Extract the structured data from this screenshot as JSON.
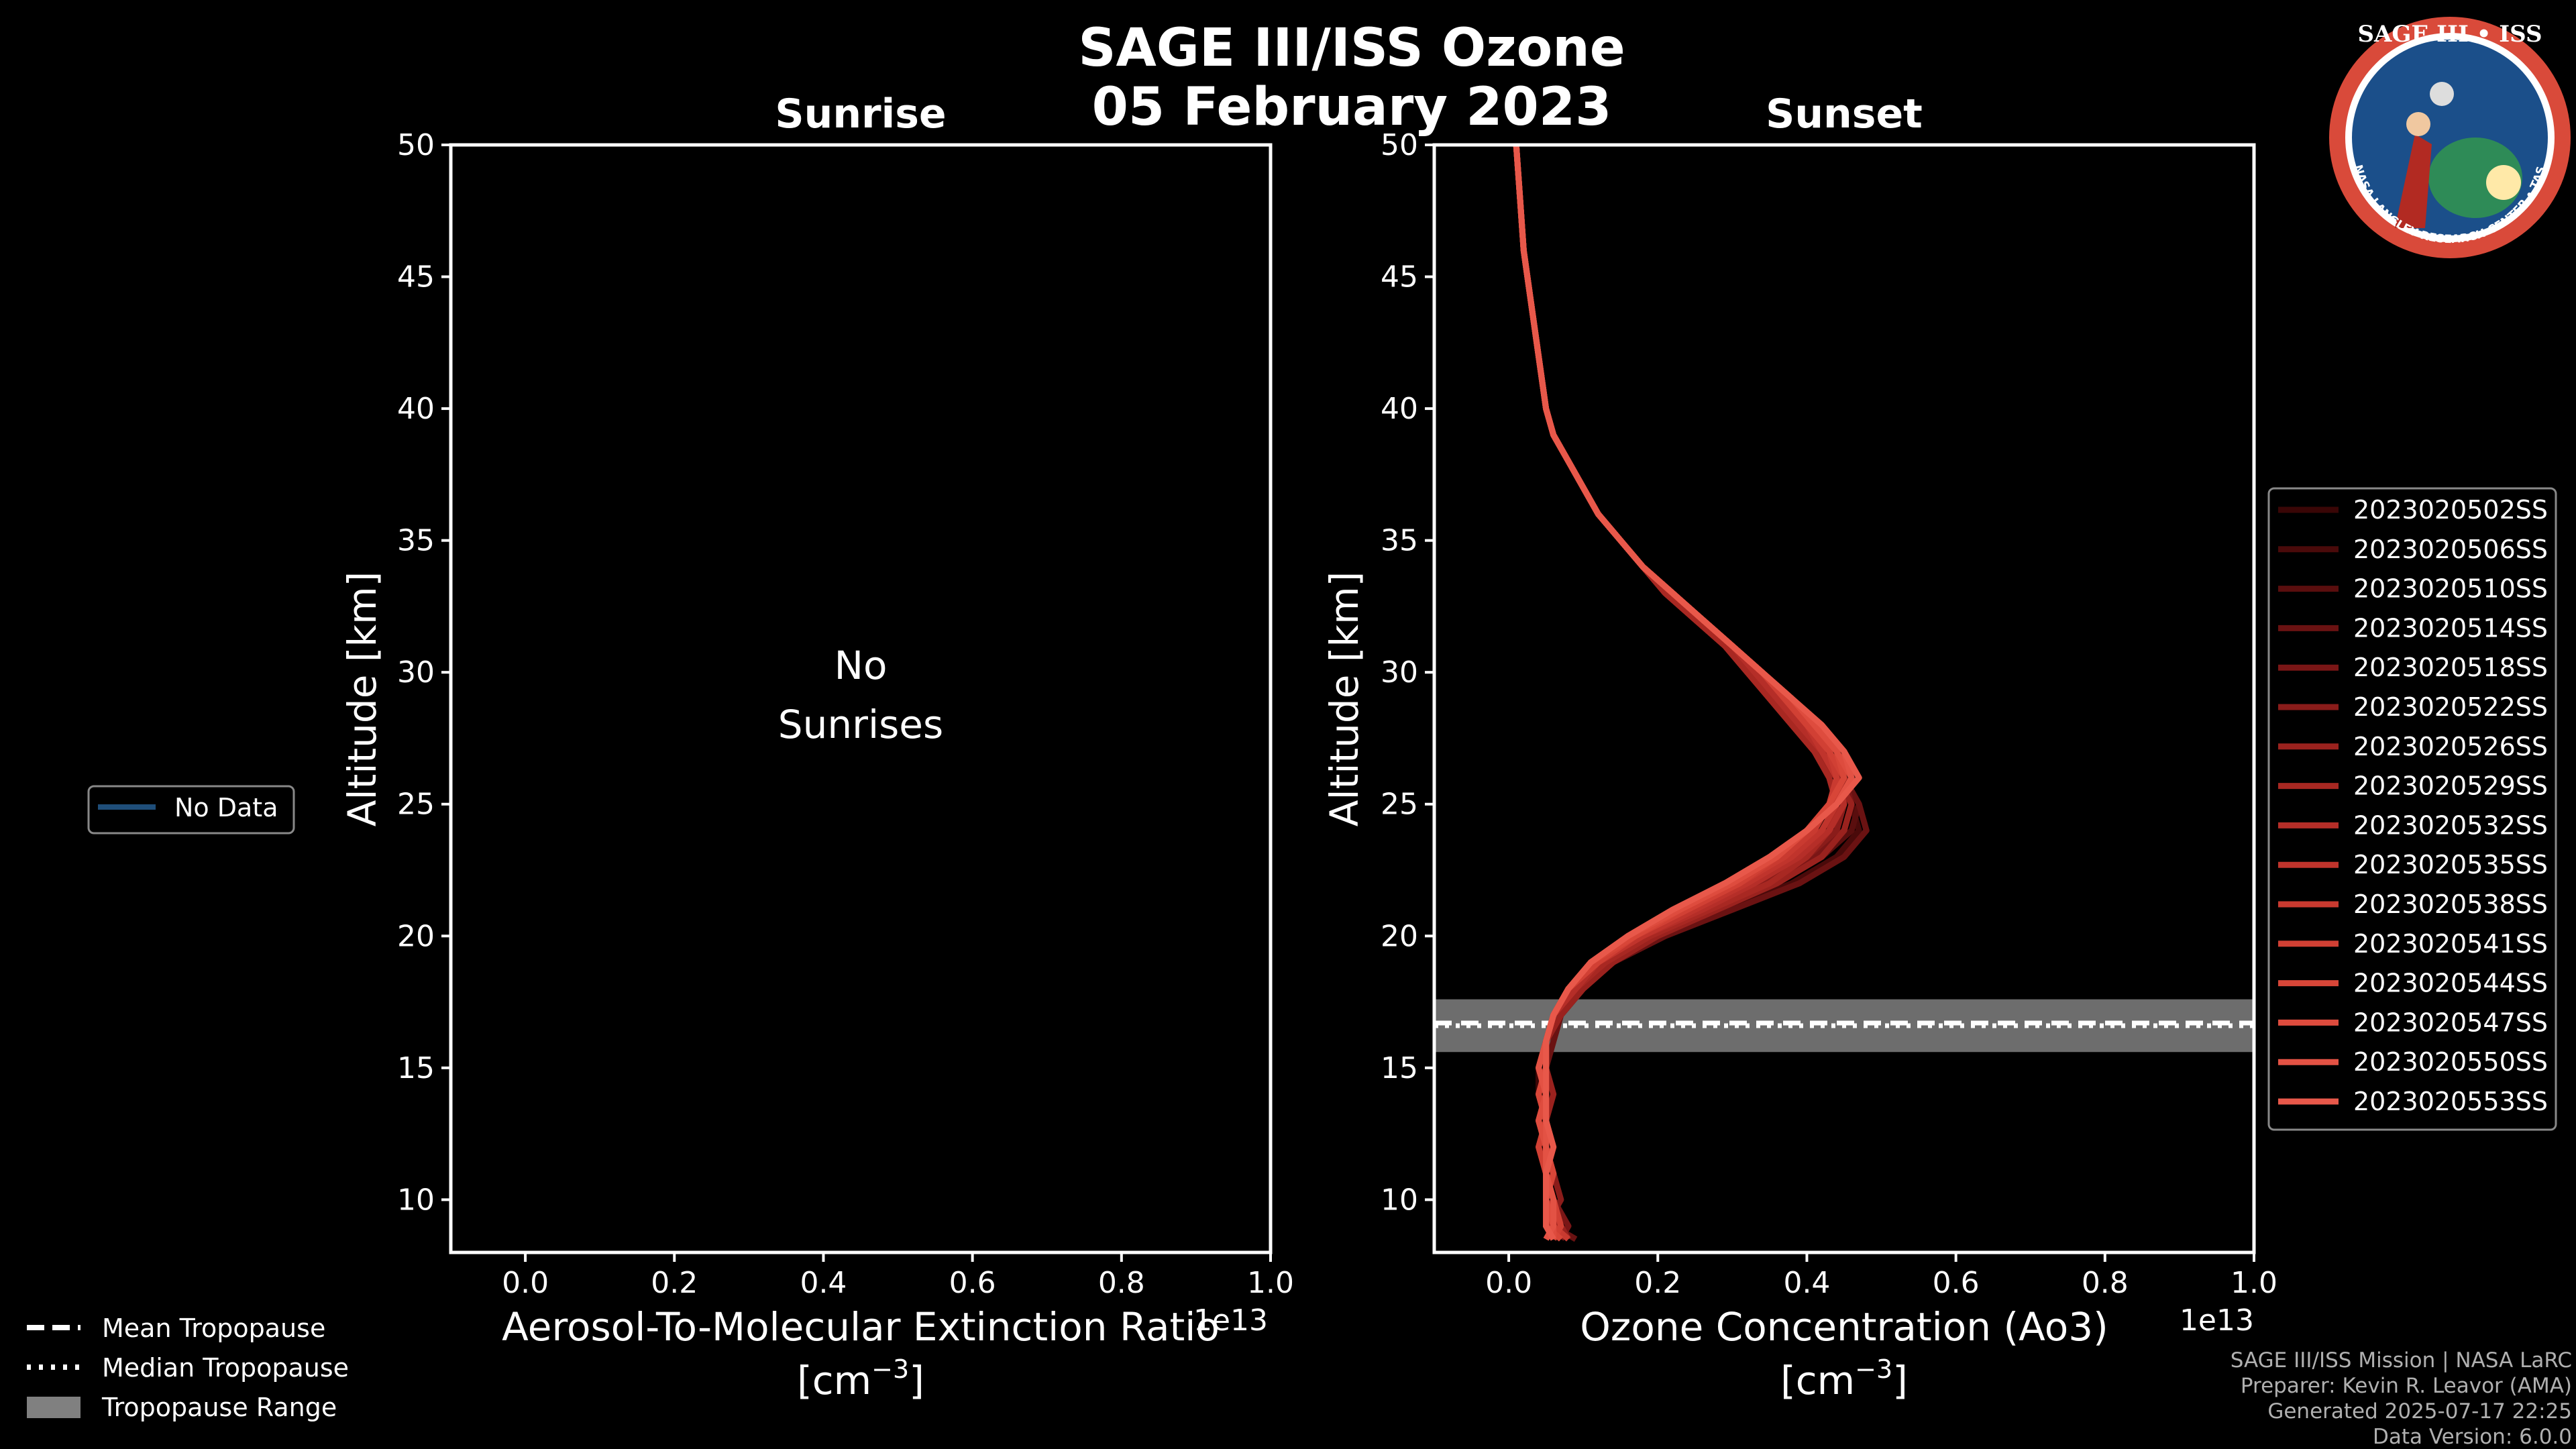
{
  "header": {
    "title_line1": "SAGE III/ISS Ozone",
    "title_line2": "05 February 2023"
  },
  "logo": {
    "text": "SAGE III • ISS",
    "ring_text": "BALL • NASA LANGLEY RESEARCH CENTER • TAS-I • ESA",
    "colors": {
      "ring": "#d94a3a",
      "inner": "#1b4f8a",
      "text": "#ffffff"
    }
  },
  "footer": {
    "mission": "SAGE III/ISS Mission | NASA LaRC",
    "preparer": "Preparer: Kevin R. Leavor (AMA)",
    "generated": "Generated 2025-07-17 22:25",
    "version": "Data Version: 6.0.0"
  },
  "left_legend": {
    "items": [
      {
        "label": "Mean Tropopause",
        "style": "dashed"
      },
      {
        "label": "Median Tropopause",
        "style": "dotted"
      },
      {
        "label": "Tropopause Range",
        "style": "patch"
      }
    ]
  },
  "chart_data": [
    {
      "type": "line",
      "title": "Sunrise",
      "xlabel": "Aerosol-To-Molecular Extinction Ratio",
      "xunit_base": "[cm",
      "xunit_exp": "−3",
      "xunit_close": "]",
      "x_offset_label": "1e13",
      "xlim": [
        -0.1,
        1.0
      ],
      "ylim": [
        8,
        50
      ],
      "xticks": [
        "0.0",
        "0.2",
        "0.4",
        "0.6",
        "0.8",
        "1.0"
      ],
      "xtick_values": [
        0.0,
        0.2,
        0.4,
        0.6,
        0.8,
        1.0
      ],
      "yticks": [
        10,
        15,
        20,
        25,
        30,
        35,
        40,
        45,
        50
      ],
      "ylabel": "Altitude [km]",
      "message_line1": "No",
      "message_line2": "Sunrises",
      "legend": [
        {
          "label": "No Data",
          "color": "#1f4e79"
        }
      ],
      "series": []
    },
    {
      "type": "line",
      "title": "Sunset",
      "xlabel": "Ozone Concentration (Ao3)",
      "xunit_base": "[cm",
      "xunit_exp": "−3",
      "xunit_close": "]",
      "x_offset_label": "1e13",
      "xlim": [
        -0.1,
        1.0
      ],
      "ylim": [
        8,
        50
      ],
      "xticks": [
        "0.0",
        "0.2",
        "0.4",
        "0.6",
        "0.8",
        "1.0"
      ],
      "xtick_values": [
        0.0,
        0.2,
        0.4,
        0.6,
        0.8,
        1.0
      ],
      "yticks": [
        10,
        15,
        20,
        25,
        30,
        35,
        40,
        45,
        50
      ],
      "ylabel": "Altitude [km]",
      "tropopause": {
        "mean": 16.7,
        "median": 16.6,
        "min": 15.6,
        "max": 17.6
      },
      "profile_altitudes": [
        8.5,
        9,
        10,
        11,
        12,
        13,
        14,
        15,
        16,
        17,
        18,
        19,
        20,
        21,
        22,
        23,
        24,
        25,
        26,
        27,
        28,
        29,
        30,
        31,
        32,
        33,
        34,
        35,
        36,
        37,
        38,
        39,
        40,
        42,
        44,
        46,
        48,
        50
      ],
      "series": [
        {
          "name": "2023020502SS",
          "color": "#3a0606",
          "values": [
            0.07,
            0.06,
            0.05,
            0.05,
            0.04,
            0.05,
            0.04,
            0.04,
            0.05,
            0.06,
            0.09,
            0.13,
            0.19,
            0.27,
            0.35,
            0.41,
            0.45,
            0.46,
            0.45,
            0.42,
            0.39,
            0.36,
            0.33,
            0.3,
            0.26,
            0.22,
            0.18,
            0.15,
            0.12,
            0.1,
            0.08,
            0.06,
            0.05,
            0.04,
            0.03,
            0.02,
            0.015,
            0.01
          ]
        },
        {
          "name": "2023020506SS",
          "color": "#4a0a0a",
          "values": [
            0.08,
            0.07,
            0.06,
            0.05,
            0.05,
            0.04,
            0.05,
            0.05,
            0.05,
            0.07,
            0.1,
            0.14,
            0.2,
            0.29,
            0.38,
            0.44,
            0.47,
            0.46,
            0.44,
            0.41,
            0.38,
            0.35,
            0.32,
            0.29,
            0.25,
            0.21,
            0.18,
            0.15,
            0.12,
            0.1,
            0.08,
            0.06,
            0.05,
            0.04,
            0.03,
            0.02,
            0.015,
            0.01
          ]
        },
        {
          "name": "2023020510SS",
          "color": "#5a0e0e",
          "values": [
            0.06,
            0.07,
            0.05,
            0.06,
            0.04,
            0.05,
            0.05,
            0.04,
            0.05,
            0.06,
            0.09,
            0.13,
            0.19,
            0.28,
            0.36,
            0.42,
            0.46,
            0.47,
            0.45,
            0.42,
            0.39,
            0.36,
            0.33,
            0.3,
            0.26,
            0.22,
            0.18,
            0.15,
            0.12,
            0.1,
            0.08,
            0.06,
            0.05,
            0.04,
            0.03,
            0.02,
            0.015,
            0.01
          ]
        },
        {
          "name": "2023020514SS",
          "color": "#6a1212",
          "values": [
            0.09,
            0.06,
            0.06,
            0.05,
            0.05,
            0.05,
            0.04,
            0.05,
            0.06,
            0.07,
            0.1,
            0.14,
            0.21,
            0.3,
            0.39,
            0.45,
            0.48,
            0.47,
            0.45,
            0.42,
            0.39,
            0.36,
            0.32,
            0.29,
            0.25,
            0.21,
            0.18,
            0.15,
            0.12,
            0.1,
            0.08,
            0.06,
            0.05,
            0.04,
            0.03,
            0.02,
            0.015,
            0.01
          ]
        },
        {
          "name": "2023020518SS",
          "color": "#7a1616",
          "values": [
            0.07,
            0.08,
            0.06,
            0.05,
            0.06,
            0.05,
            0.05,
            0.05,
            0.05,
            0.06,
            0.09,
            0.13,
            0.19,
            0.27,
            0.35,
            0.41,
            0.45,
            0.46,
            0.45,
            0.42,
            0.39,
            0.36,
            0.33,
            0.3,
            0.26,
            0.22,
            0.18,
            0.15,
            0.12,
            0.1,
            0.08,
            0.06,
            0.05,
            0.04,
            0.03,
            0.02,
            0.015,
            0.01
          ]
        },
        {
          "name": "2023020522SS",
          "color": "#8a1c1a",
          "values": [
            0.06,
            0.05,
            0.07,
            0.06,
            0.05,
            0.04,
            0.05,
            0.04,
            0.05,
            0.06,
            0.09,
            0.12,
            0.18,
            0.26,
            0.34,
            0.4,
            0.44,
            0.45,
            0.44,
            0.41,
            0.38,
            0.35,
            0.32,
            0.29,
            0.25,
            0.21,
            0.18,
            0.15,
            0.12,
            0.1,
            0.08,
            0.06,
            0.05,
            0.04,
            0.03,
            0.02,
            0.015,
            0.01
          ]
        },
        {
          "name": "2023020526SS",
          "color": "#9a221e",
          "values": [
            0.08,
            0.07,
            0.05,
            0.05,
            0.04,
            0.05,
            0.06,
            0.05,
            0.05,
            0.07,
            0.1,
            0.14,
            0.2,
            0.28,
            0.36,
            0.42,
            0.45,
            0.46,
            0.44,
            0.41,
            0.38,
            0.35,
            0.32,
            0.29,
            0.25,
            0.21,
            0.18,
            0.15,
            0.12,
            0.1,
            0.08,
            0.06,
            0.05,
            0.04,
            0.03,
            0.02,
            0.015,
            0.01
          ]
        },
        {
          "name": "2023020529SS",
          "color": "#a82822",
          "values": [
            0.05,
            0.06,
            0.06,
            0.05,
            0.05,
            0.05,
            0.05,
            0.04,
            0.05,
            0.06,
            0.09,
            0.13,
            0.19,
            0.27,
            0.35,
            0.4,
            0.43,
            0.44,
            0.43,
            0.41,
            0.38,
            0.35,
            0.32,
            0.29,
            0.25,
            0.21,
            0.18,
            0.15,
            0.12,
            0.1,
            0.08,
            0.06,
            0.05,
            0.04,
            0.03,
            0.02,
            0.015,
            0.01
          ]
        },
        {
          "name": "2023020532SS",
          "color": "#b52e28",
          "values": [
            0.07,
            0.06,
            0.05,
            0.06,
            0.05,
            0.04,
            0.05,
            0.05,
            0.05,
            0.06,
            0.09,
            0.12,
            0.18,
            0.26,
            0.33,
            0.39,
            0.43,
            0.45,
            0.44,
            0.42,
            0.39,
            0.36,
            0.33,
            0.3,
            0.26,
            0.22,
            0.18,
            0.15,
            0.12,
            0.1,
            0.08,
            0.06,
            0.05,
            0.04,
            0.03,
            0.02,
            0.015,
            0.01
          ]
        },
        {
          "name": "2023020535SS",
          "color": "#c0342c",
          "values": [
            0.06,
            0.05,
            0.06,
            0.05,
            0.06,
            0.05,
            0.04,
            0.05,
            0.05,
            0.06,
            0.08,
            0.12,
            0.18,
            0.25,
            0.32,
            0.38,
            0.42,
            0.44,
            0.44,
            0.42,
            0.4,
            0.37,
            0.34,
            0.3,
            0.26,
            0.22,
            0.18,
            0.15,
            0.12,
            0.1,
            0.08,
            0.06,
            0.05,
            0.04,
            0.03,
            0.02,
            0.015,
            0.01
          ]
        },
        {
          "name": "2023020538SS",
          "color": "#c93a30",
          "values": [
            0.08,
            0.06,
            0.05,
            0.05,
            0.05,
            0.05,
            0.05,
            0.04,
            0.05,
            0.06,
            0.08,
            0.12,
            0.17,
            0.24,
            0.31,
            0.37,
            0.41,
            0.43,
            0.44,
            0.43,
            0.4,
            0.37,
            0.34,
            0.3,
            0.26,
            0.22,
            0.18,
            0.15,
            0.12,
            0.1,
            0.08,
            0.06,
            0.05,
            0.04,
            0.03,
            0.02,
            0.015,
            0.01
          ]
        },
        {
          "name": "2023020541SS",
          "color": "#d14034",
          "values": [
            0.06,
            0.07,
            0.06,
            0.05,
            0.04,
            0.05,
            0.05,
            0.05,
            0.05,
            0.06,
            0.08,
            0.12,
            0.17,
            0.24,
            0.31,
            0.36,
            0.4,
            0.43,
            0.45,
            0.43,
            0.4,
            0.37,
            0.34,
            0.3,
            0.26,
            0.22,
            0.18,
            0.15,
            0.12,
            0.1,
            0.08,
            0.06,
            0.05,
            0.04,
            0.03,
            0.02,
            0.015,
            0.01
          ]
        },
        {
          "name": "2023020544SS",
          "color": "#d84638",
          "values": [
            0.07,
            0.05,
            0.05,
            0.06,
            0.05,
            0.05,
            0.04,
            0.05,
            0.05,
            0.06,
            0.08,
            0.11,
            0.17,
            0.23,
            0.3,
            0.36,
            0.4,
            0.43,
            0.45,
            0.44,
            0.41,
            0.38,
            0.34,
            0.3,
            0.26,
            0.22,
            0.18,
            0.15,
            0.12,
            0.1,
            0.08,
            0.06,
            0.05,
            0.04,
            0.03,
            0.02,
            0.015,
            0.01
          ]
        },
        {
          "name": "2023020547SS",
          "color": "#de4c3e",
          "values": [
            0.06,
            0.06,
            0.05,
            0.05,
            0.05,
            0.04,
            0.05,
            0.05,
            0.05,
            0.06,
            0.08,
            0.11,
            0.16,
            0.23,
            0.3,
            0.36,
            0.4,
            0.44,
            0.46,
            0.44,
            0.41,
            0.38,
            0.34,
            0.3,
            0.26,
            0.22,
            0.18,
            0.15,
            0.12,
            0.1,
            0.08,
            0.06,
            0.05,
            0.04,
            0.03,
            0.02,
            0.015,
            0.01
          ]
        },
        {
          "name": "2023020550SS",
          "color": "#e35244",
          "values": [
            0.05,
            0.06,
            0.06,
            0.05,
            0.05,
            0.05,
            0.05,
            0.04,
            0.05,
            0.06,
            0.08,
            0.11,
            0.16,
            0.22,
            0.29,
            0.35,
            0.4,
            0.44,
            0.46,
            0.45,
            0.42,
            0.38,
            0.34,
            0.3,
            0.26,
            0.22,
            0.18,
            0.15,
            0.12,
            0.1,
            0.08,
            0.06,
            0.05,
            0.04,
            0.03,
            0.02,
            0.015,
            0.01
          ]
        },
        {
          "name": "2023020553SS",
          "color": "#e8584a",
          "values": [
            0.06,
            0.05,
            0.05,
            0.05,
            0.06,
            0.05,
            0.05,
            0.05,
            0.05,
            0.06,
            0.08,
            0.11,
            0.16,
            0.22,
            0.29,
            0.35,
            0.4,
            0.44,
            0.47,
            0.45,
            0.42,
            0.38,
            0.34,
            0.3,
            0.26,
            0.22,
            0.18,
            0.15,
            0.12,
            0.1,
            0.08,
            0.06,
            0.05,
            0.04,
            0.03,
            0.02,
            0.015,
            0.01
          ]
        }
      ]
    }
  ]
}
